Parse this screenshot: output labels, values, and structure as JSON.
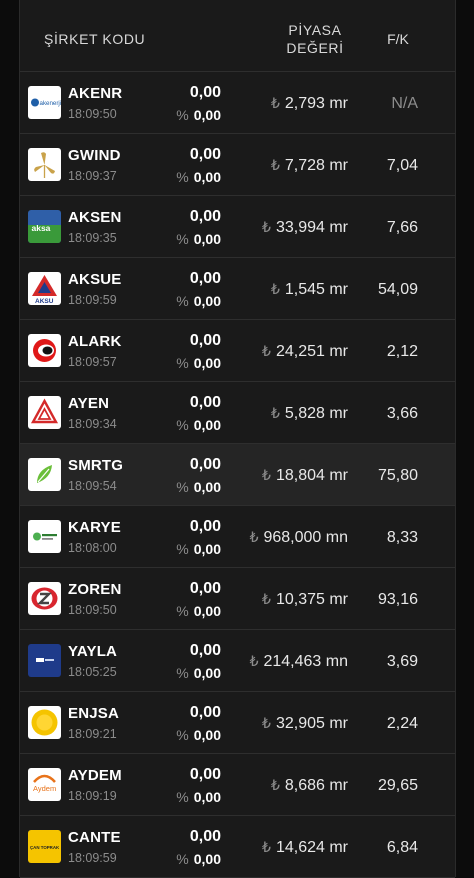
{
  "header": {
    "company_code": "ŞİRKET KODU",
    "market_value_line1": "PİYASA",
    "market_value_line2": "DEĞERİ",
    "pe": "F/K"
  },
  "currency_symbol": "₺",
  "percent_symbol": "%",
  "rows": [
    {
      "code": "AKENR",
      "time": "18:09:50",
      "price": "0,00",
      "change": "0,00",
      "mcap": "2,793 mr",
      "pe": "N/A",
      "logo": "akenerji-logo"
    },
    {
      "code": "GWIND",
      "time": "18:09:37",
      "price": "0,00",
      "change": "0,00",
      "mcap": "7,728 mr",
      "pe": "7,04",
      "logo": "galata-wind-logo"
    },
    {
      "code": "AKSEN",
      "time": "18:09:35",
      "price": "0,00",
      "change": "0,00",
      "mcap": "33,994 mr",
      "pe": "7,66",
      "logo": "aksa-logo"
    },
    {
      "code": "AKSUE",
      "time": "18:09:59",
      "price": "0,00",
      "change": "0,00",
      "mcap": "1,545 mr",
      "pe": "54,09",
      "logo": "aksu-logo"
    },
    {
      "code": "ALARK",
      "time": "18:09:57",
      "price": "0,00",
      "change": "0,00",
      "mcap": "24,251 mr",
      "pe": "2,12",
      "logo": "alarko-logo"
    },
    {
      "code": "AYEN",
      "time": "18:09:34",
      "price": "0,00",
      "change": "0,00",
      "mcap": "5,828 mr",
      "pe": "3,66",
      "logo": "ayen-logo"
    },
    {
      "code": "SMRTG",
      "time": "18:09:54",
      "price": "0,00",
      "change": "0,00",
      "mcap": "18,804 mr",
      "pe": "75,80",
      "logo": "smart-gunes-logo"
    },
    {
      "code": "KARYE",
      "time": "18:08:00",
      "price": "0,00",
      "change": "0,00",
      "mcap": "968,000 mn",
      "pe": "8,33",
      "logo": "kartal-yenilenebilir-logo"
    },
    {
      "code": "ZOREN",
      "time": "18:09:50",
      "price": "0,00",
      "change": "0,00",
      "mcap": "10,375 mr",
      "pe": "93,16",
      "logo": "zorlu-logo"
    },
    {
      "code": "YAYLA",
      "time": "18:05:25",
      "price": "0,00",
      "change": "0,00",
      "mcap": "214,463 mn",
      "pe": "3,69",
      "logo": "yayla-logo"
    },
    {
      "code": "ENJSA",
      "time": "18:09:21",
      "price": "0,00",
      "change": "0,00",
      "mcap": "32,905 mr",
      "pe": "2,24",
      "logo": "enerjisa-logo"
    },
    {
      "code": "AYDEM",
      "time": "18:09:19",
      "price": "0,00",
      "change": "0,00",
      "mcap": "8,686 mr",
      "pe": "29,65",
      "logo": "aydem-logo"
    },
    {
      "code": "CANTE",
      "time": "18:09:59",
      "price": "0,00",
      "change": "0,00",
      "mcap": "14,624 mr",
      "pe": "6,84",
      "logo": "cantek-logo"
    }
  ],
  "logo_texts": {
    "akenerji": "akenerji",
    "aksa": "aksa",
    "aksu": "AKSU",
    "aydem": "Aydem",
    "cantek": "ÇAN TOPRAK"
  },
  "colors": {
    "background": "#0c0c0c",
    "panel": "#1a1a1a",
    "highlight_row": "#252525",
    "muted_text": "#8c8c8c",
    "aksa_green": "#3a9a3a",
    "aksu_red": "#d42a2a",
    "alarko_red": "#e01818",
    "smrtg_green": "#6bbf3a",
    "yayla_navy": "#1f3b8a",
    "enerjisa_yellow": "#f5c400",
    "zorlu_red": "#d8262f"
  }
}
